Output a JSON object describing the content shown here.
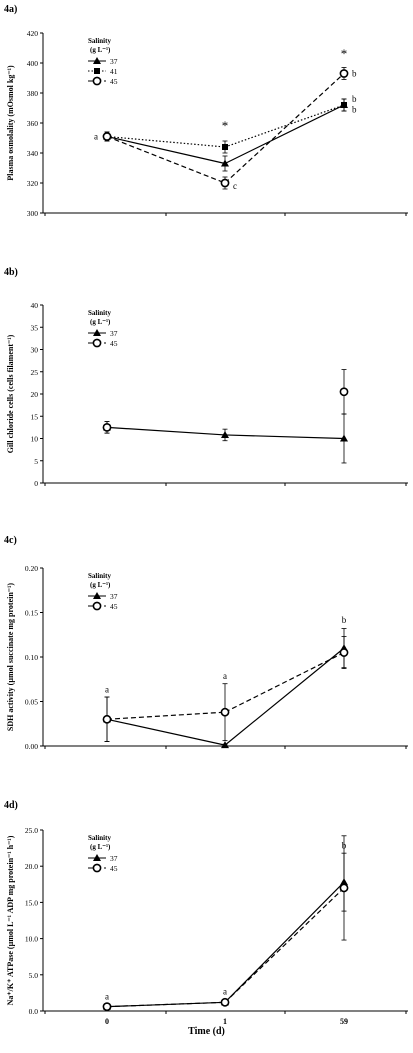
{
  "x_title": "Time (d)",
  "chart_data": [
    {
      "type": "line",
      "panel": "4a)",
      "ylabel": "Plasma osmolality (mOsmol kg⁻¹)",
      "ylim": [
        300,
        420
      ],
      "yticks": [
        "300",
        "320",
        "340",
        "360",
        "380",
        "400",
        "420"
      ],
      "x": [
        "0",
        "1",
        "59"
      ],
      "x_tick_labels": false,
      "legend_title": [
        "Salinity",
        "(g L⁻¹)"
      ],
      "legend_position": "top-left",
      "series": [
        {
          "name": "37",
          "marker": "triangle",
          "dash": "solid",
          "values": [
            351,
            333,
            372
          ],
          "err": [
            3,
            5,
            4
          ]
        },
        {
          "name": "41",
          "marker": "square",
          "dash": "dotted",
          "values": [
            351,
            344,
            372
          ],
          "err": [
            3,
            4,
            4
          ]
        },
        {
          "name": "45",
          "marker": "open-circle",
          "dash": "dashed",
          "values": [
            351,
            320,
            393
          ],
          "err": [
            3,
            4,
            4
          ]
        }
      ],
      "annotations": [
        {
          "text": "a",
          "x": "0",
          "y": 351,
          "pos": "left"
        },
        {
          "text": "*",
          "x": "1",
          "y": 354,
          "pos": "above"
        },
        {
          "text": "c",
          "x": "1",
          "y": 318,
          "pos": "right"
        },
        {
          "text": "*",
          "x": "59",
          "y": 402,
          "pos": "above"
        },
        {
          "text": "b",
          "x": "59",
          "y": 393,
          "pos": "right"
        },
        {
          "text": "b",
          "x": "59",
          "y": 376,
          "pos": "right"
        },
        {
          "text": "b",
          "x": "59",
          "y": 369,
          "pos": "right"
        }
      ]
    },
    {
      "type": "line",
      "panel": "4b)",
      "ylabel": "Gill chloride cells (cells filament⁻¹)",
      "ylim": [
        0,
        40
      ],
      "yticks": [
        "0",
        "5",
        "10",
        "15",
        "20",
        "25",
        "30",
        "35",
        "40"
      ],
      "x": [
        "0",
        "1",
        "59"
      ],
      "x_tick_labels": false,
      "legend_title": [
        "Salinity",
        "(g L⁻¹)"
      ],
      "legend_position": "top-left",
      "series": [
        {
          "name": "37",
          "marker": "triangle",
          "dash": "solid",
          "values": [
            12.5,
            10.8,
            10.0
          ],
          "err": [
            1.3,
            1.3,
            5.5
          ]
        },
        {
          "name": "45",
          "marker": "open-circle",
          "dash": "dashed",
          "values": [
            12.5,
            null,
            20.5
          ],
          "err": [
            1.3,
            null,
            5.0
          ]
        }
      ],
      "annotations": []
    },
    {
      "type": "line",
      "panel": "4c)",
      "ylabel": "SDH activity (µmol succinate mg protein⁻¹)",
      "ylim": [
        0,
        0.2
      ],
      "yticks": [
        "0.00",
        "0.05",
        "0.10",
        "0.15",
        "0.20"
      ],
      "x": [
        "0",
        "1",
        "59"
      ],
      "x_tick_labels": false,
      "legend_title": [
        "Salinity",
        "(g L⁻¹)"
      ],
      "legend_position": "top-left",
      "series": [
        {
          "name": "37",
          "marker": "triangle",
          "dash": "solid",
          "values": [
            0.03,
            0.001,
            0.11
          ],
          "err": [
            0.025,
            0.001,
            0.022
          ]
        },
        {
          "name": "45",
          "marker": "open-circle",
          "dash": "dashed",
          "values": [
            0.03,
            0.038,
            0.105
          ],
          "err": [
            0.025,
            0.032,
            0.018
          ]
        }
      ],
      "annotations": [
        {
          "text": "a",
          "x": "0",
          "y": 0.058,
          "pos": "above"
        },
        {
          "text": "a",
          "x": "1",
          "y": 0.073,
          "pos": "above"
        },
        {
          "text": "b",
          "x": "59",
          "y": 0.136,
          "pos": "above"
        }
      ]
    },
    {
      "type": "line",
      "panel": "4d)",
      "ylabel": "Na⁺/K⁺ ATPase (µmol L⁻¹ ADP mg protein⁻¹ h⁻¹)",
      "ylim": [
        0,
        25
      ],
      "yticks": [
        "0.0",
        "5.0",
        "10.0",
        "15.0",
        "20.0",
        "25.0"
      ],
      "x": [
        "0",
        "1",
        "59"
      ],
      "x_tick_labels": true,
      "legend_title": [
        "Salinity",
        "(g L⁻¹)"
      ],
      "legend_position": "top-left",
      "series": [
        {
          "name": "37",
          "marker": "triangle",
          "dash": "solid",
          "values": [
            0.6,
            1.2,
            17.8
          ],
          "err": [
            0.3,
            0.4,
            4.0
          ]
        },
        {
          "name": "45",
          "marker": "open-circle",
          "dash": "dashed",
          "values": [
            0.6,
            1.2,
            17.0
          ],
          "err": [
            0.3,
            0.4,
            7.2
          ]
        }
      ],
      "annotations": [
        {
          "text": "a",
          "x": "0",
          "y": 1.3,
          "pos": "above"
        },
        {
          "text": "a",
          "x": "1",
          "y": 2.0,
          "pos": "above"
        },
        {
          "text": "b",
          "x": "59",
          "y": 22.2,
          "pos": "above"
        }
      ]
    }
  ]
}
